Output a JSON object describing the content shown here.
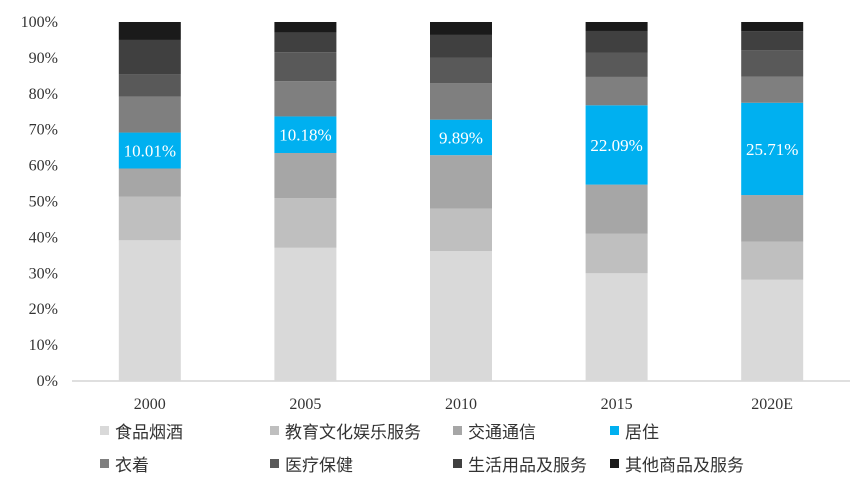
{
  "chart_data": {
    "type": "bar",
    "stacked": true,
    "percent_stacked": true,
    "categories": [
      "2000",
      "2005",
      "2010",
      "2015",
      "2020E"
    ],
    "ylim": [
      0,
      100
    ],
    "yticks": [
      "0%",
      "10%",
      "20%",
      "30%",
      "40%",
      "50%",
      "60%",
      "70%",
      "80%",
      "90%",
      "100%"
    ],
    "grid": false,
    "legend_position": "bottom",
    "series": [
      {
        "name": "食品烟酒",
        "color": "#d9d9d9",
        "values": [
          39.2,
          37.1,
          36.2,
          30.0,
          28.2
        ]
      },
      {
        "name": "教育文化娱乐服务",
        "color": "#bfbfbf",
        "values": [
          12.2,
          13.8,
          11.8,
          11.0,
          10.6
        ]
      },
      {
        "name": "交通通信",
        "color": "#a6a6a6",
        "values": [
          7.8,
          12.6,
          14.9,
          13.7,
          13.0
        ]
      },
      {
        "name": "居住",
        "color": "#00b0f0",
        "values": [
          10.01,
          10.18,
          9.89,
          22.09,
          25.71
        ],
        "labels": [
          "10.01%",
          "10.18%",
          "9.89%",
          "22.09%",
          "25.71%"
        ]
      },
      {
        "name": "衣着",
        "color": "#7f7f7f",
        "values": [
          10.0,
          9.8,
          10.2,
          7.9,
          7.3
        ]
      },
      {
        "name": "医疗保健",
        "color": "#595959",
        "values": [
          6.3,
          8.1,
          7.0,
          6.8,
          7.3
        ]
      },
      {
        "name": "生活用品及服务",
        "color": "#404040",
        "values": [
          9.5,
          5.4,
          6.4,
          6.0,
          5.3
        ]
      },
      {
        "name": "其他商品及服务",
        "color": "#1a1a1a",
        "values": [
          5.0,
          3.0,
          3.6,
          2.5,
          2.6
        ]
      }
    ]
  }
}
